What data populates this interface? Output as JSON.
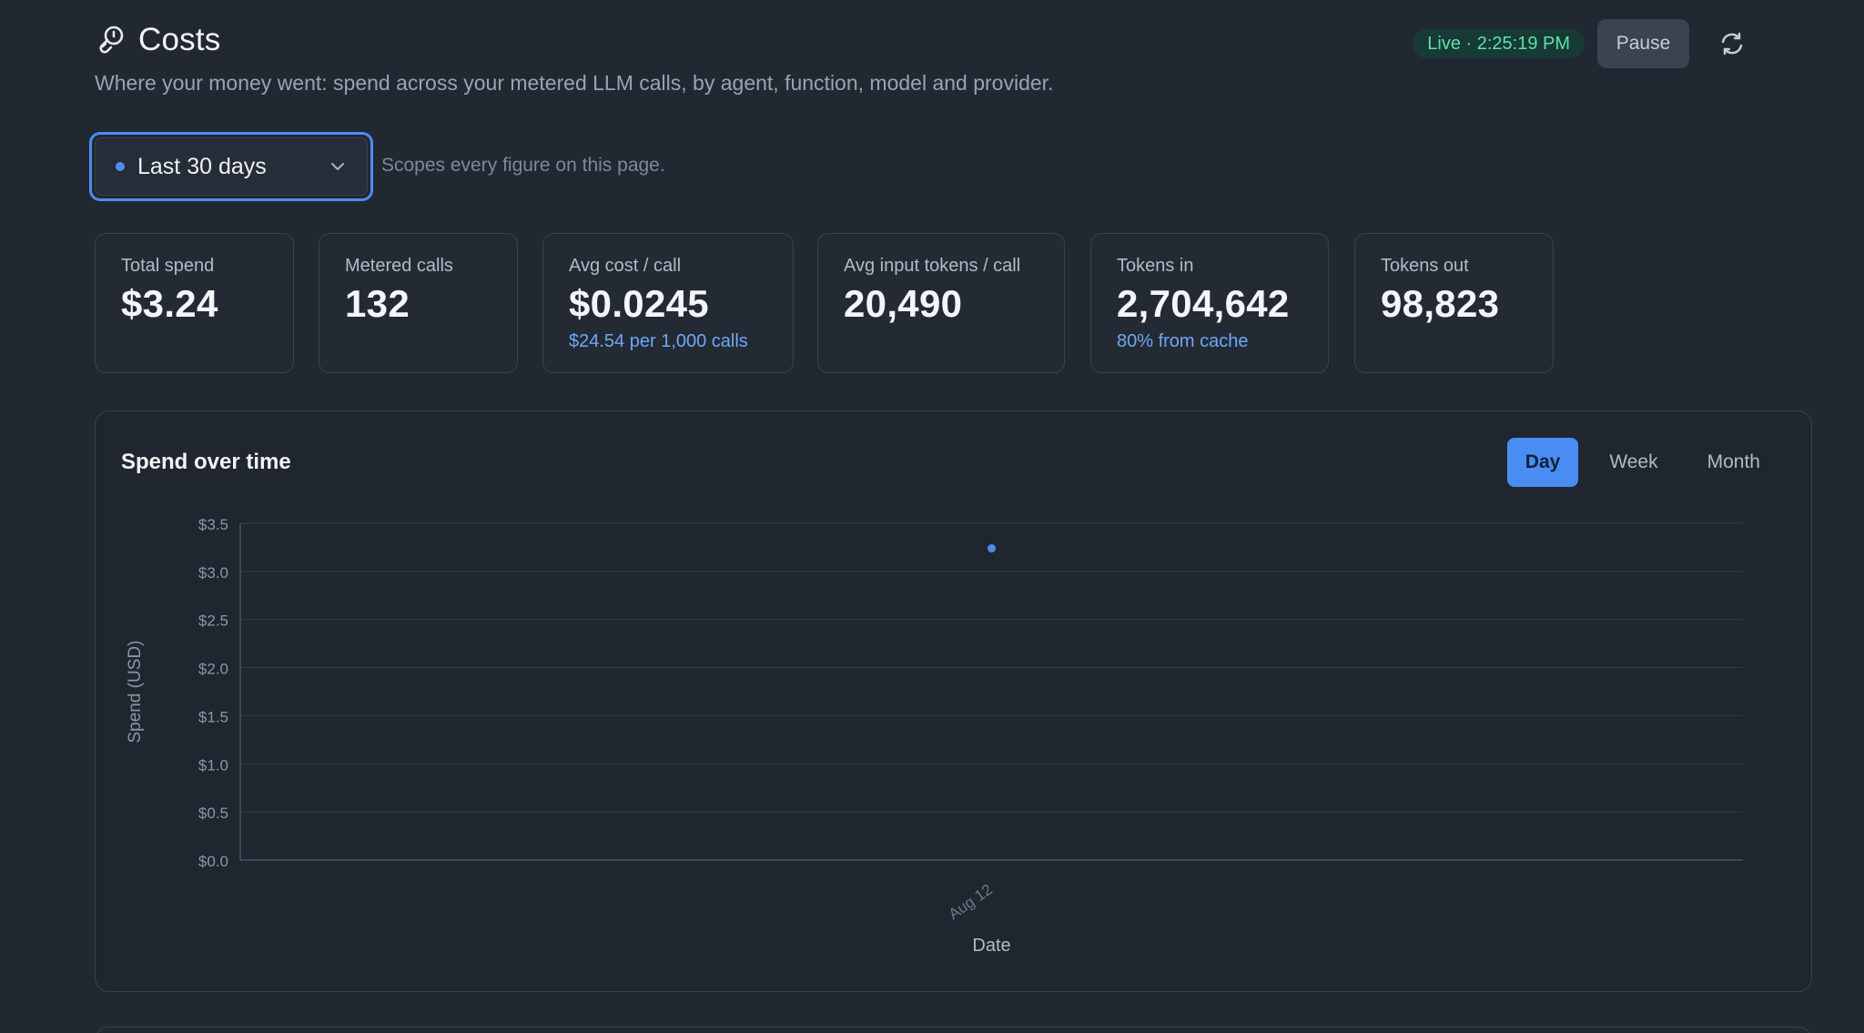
{
  "header": {
    "title": "Costs",
    "title_icon": "coin-link-icon",
    "subtitle": "Where your money went: spend across your metered LLM calls, by agent, function, model and provider.",
    "live_label": "Live · 2:25:19 PM",
    "pause_label": "Pause",
    "refresh_icon": "refresh-icon"
  },
  "range": {
    "selected": "Last 30 days",
    "hint": "Scopes every figure on this page."
  },
  "stats": [
    {
      "label": "Total spend",
      "value": "$3.24",
      "sub": ""
    },
    {
      "label": "Metered calls",
      "value": "132",
      "sub": ""
    },
    {
      "label": "Avg cost / call",
      "value": "$0.0245",
      "sub": "$24.54 per 1,000 calls"
    },
    {
      "label": "Avg input tokens / call",
      "value": "20,490",
      "sub": ""
    },
    {
      "label": "Tokens in",
      "value": "2,704,642",
      "sub": "80% from cache"
    },
    {
      "label": "Tokens out",
      "value": "98,823",
      "sub": ""
    }
  ],
  "colors": {
    "accent": "#4a8df2",
    "live": "#5fe0a8",
    "sub": "#6ea8f5"
  },
  "spend_panel": {
    "title": "Spend over time",
    "granularity": [
      "Day",
      "Week",
      "Month"
    ],
    "selected_granularity": "Day"
  },
  "chart_data": {
    "type": "scatter",
    "title": "",
    "xlabel": "Date",
    "ylabel": "Spend (USD)",
    "x": [
      "Aug 12"
    ],
    "values": [
      3.24
    ],
    "ylim": [
      0,
      3.5
    ],
    "yticks": [
      "$0.0",
      "$0.5",
      "$1.0",
      "$1.5",
      "$2.0",
      "$2.5",
      "$3.0",
      "$3.5"
    ],
    "grid": true,
    "color": "#4a8df2"
  }
}
